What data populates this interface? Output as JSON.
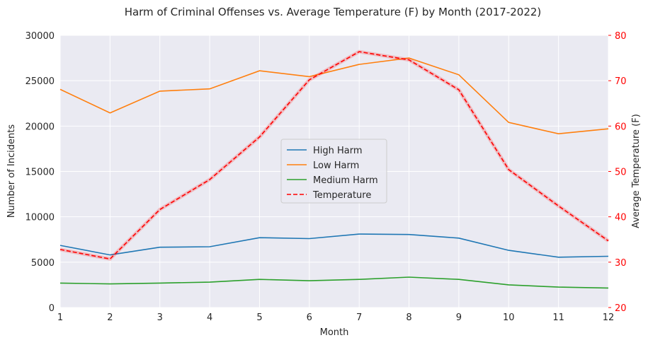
{
  "chart_data": {
    "type": "line",
    "title": "Harm of Criminal Offenses vs. Average Temperature (F) by Month (2017-2022)",
    "xlabel": "Month",
    "ylabel": "Number of Incidents",
    "ylabel_right": "Average Temperature (F)",
    "x": [
      1,
      2,
      3,
      4,
      5,
      6,
      7,
      8,
      9,
      10,
      11,
      12
    ],
    "xlim": [
      1,
      12
    ],
    "ylim": [
      0,
      30000
    ],
    "ylim_right": [
      20,
      80
    ],
    "y_ticks": [
      0,
      5000,
      10000,
      15000,
      20000,
      25000,
      30000
    ],
    "y_ticks_right": [
      20,
      30,
      40,
      50,
      60,
      70,
      80
    ],
    "grid": true,
    "legend_position": "center",
    "series": [
      {
        "name": "High Harm",
        "axis": "left",
        "color": "#1f77b4",
        "dash": false,
        "values": [
          6850,
          5800,
          6650,
          6700,
          7700,
          7600,
          8100,
          8050,
          7650,
          6300,
          5550,
          5650
        ]
      },
      {
        "name": "Low Harm",
        "axis": "left",
        "color": "#ff7f0e",
        "dash": false,
        "values": [
          24050,
          21450,
          23850,
          24100,
          26100,
          25450,
          26800,
          27500,
          25650,
          20400,
          19150,
          19700
        ]
      },
      {
        "name": "Medium Harm",
        "axis": "left",
        "color": "#2ca02c",
        "dash": false,
        "values": [
          2700,
          2600,
          2700,
          2800,
          3100,
          2950,
          3100,
          3350,
          3100,
          2500,
          2250,
          2150
        ]
      },
      {
        "name": "Temperature",
        "axis": "right",
        "color": "#ff0000",
        "dash": true,
        "values": [
          32.8,
          30.7,
          41.6,
          48.2,
          57.6,
          70.2,
          76.4,
          74.6,
          68.0,
          50.4,
          42.4,
          34.7
        ]
      }
    ]
  }
}
